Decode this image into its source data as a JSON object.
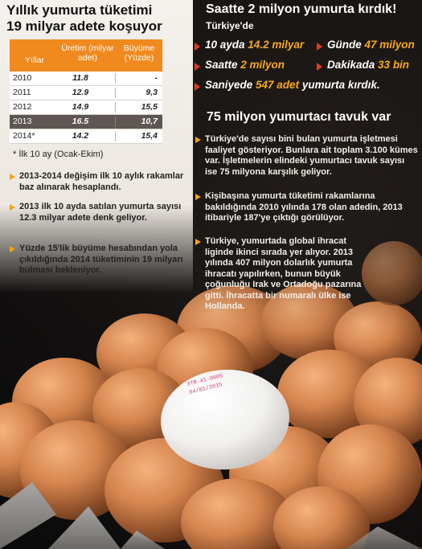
{
  "left": {
    "title_line1": "Yıllık yumurta tüketimi",
    "title_line2": "19 milyar adete koşuyor",
    "table": {
      "header": {
        "years": "Yıllar",
        "production": "Üretim (milyar adet)",
        "growth": "Büyüme (Yüzde)"
      },
      "rows": [
        {
          "year": "2010",
          "production": "11.8",
          "growth": "-"
        },
        {
          "year": "2011",
          "production": "12.9",
          "growth": "9,3"
        },
        {
          "year": "2012",
          "production": "14.9",
          "growth": "15,5"
        },
        {
          "year": "2013",
          "production": "16.5",
          "growth": "10,7"
        },
        {
          "year": "2014*",
          "production": "14.2",
          "growth": "15,4"
        }
      ]
    },
    "footnote": "* İlk 10 ay (Ocak-Ekim)",
    "bullets": [
      "2013-2014 değişim ilk 10 aylık rakamlar baz alınarak hesaplandı.",
      "2013 ilk 10 ayda satılan yumurta sayısı 12.3 milyar adete denk geliyor.",
      "Yüzde 15'lik büyüme hesabından yola çıkıldığında 2014 tüketiminin 19 milyarı bulması bekleniyor."
    ]
  },
  "right": {
    "title": "Saatte 2 milyon yumurta kırdık!",
    "subtitle": "Türkiye'de",
    "stats": [
      {
        "prefix": "10 ayda ",
        "number": "14.2 milyar",
        "suffix": ""
      },
      {
        "prefix": "Günde ",
        "number": "47 milyon",
        "suffix": ""
      },
      {
        "prefix": "Saatte ",
        "number": "2 milyon",
        "suffix": ""
      },
      {
        "prefix": "Dakikada ",
        "number": "33 bin",
        "suffix": ""
      },
      {
        "prefix": "Saniyede ",
        "number": "547 adet",
        "suffix": " yumurta kırdık."
      }
    ],
    "section_title": "75 milyon yumurtacı tavuk var",
    "bullets": [
      "Türkiye'de sayısı bini bulan yumurta işletmesi faaliyet gösteriyor. Bunlara ait toplam 3.100 kümes var. İşletmelerin elindeki yumurtacı tavuk sayısı ise 75 milyona karşılık geliyor.",
      "Kişibaşına yumurta tüketimi rakamlarına bakıldığında 2010 yılında 178 olan adedin, 2013 itibariyle 187'ye çıktığı görülüyor.",
      "Türkiye, yumurtada global ihracat liginde ikinci sırada yer alıyor. 2013 yılında 407 milyon dolarlık yumurta ihracatı yapılırken, bunun büyük çoğunluğu Irak ve Ortadoğu pazarına gitti. İhracatta bir numaralı ülke ise Hollanda."
    ]
  },
  "colors": {
    "orange": "#f08a1e",
    "highlight": "#f8a81b",
    "red_arrow": "#e23a22"
  }
}
